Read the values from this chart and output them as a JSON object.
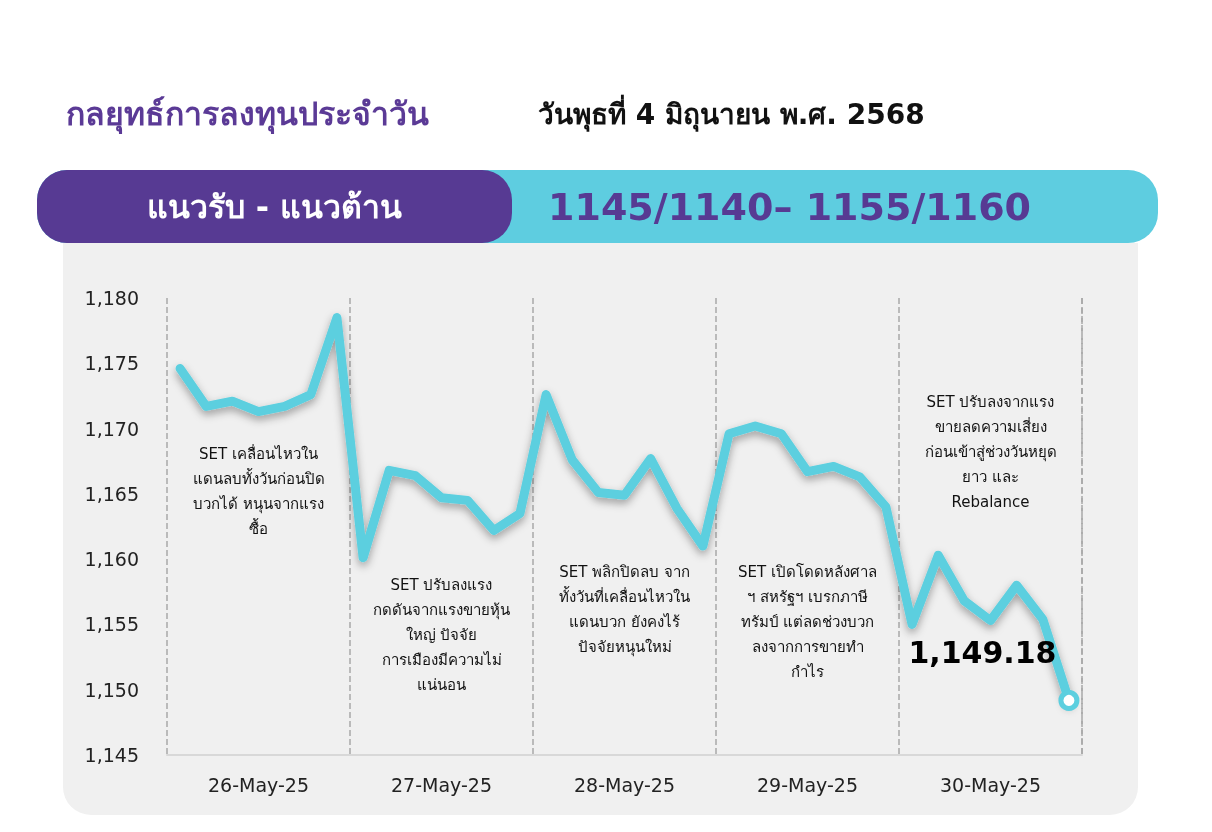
{
  "chart_data": {
    "type": "line",
    "title": "กลยุทธ์การลงทุนประจำวัน",
    "subtitle": "วันพุธที่ 4 มิถุนายน พ.ศ. 2568",
    "annotations": [
      "แนวรับ - แนวต้าน",
      "1145/1140– 1155/1160",
      "SET เคลื่อนไหวใน\nแดนลบทั้งวันก่อนปิด\nบวกได้ หนุนจากแรง\nซื้อ",
      "SET ปรับลงแรง\nกดดันจากแรงขายหุ้น\nใหญ่ ปัจจัย\nการเมืองมีความไม่\nแน่นอน",
      "SET พลิกปิดลบ จาก\nทั้งวันที่เคลื่อนไหวใน\nแดนบวก ยังคงไร้\nปัจจัยหนุนใหม่",
      "SET เปิดโดดหลังศาล\nฯ สหรัฐฯ เบรกภาษี\nทรัมป์ แต่ลดช่วงบวก\nลงจากการขายทำ\nกำไร",
      "SET ปรับลงจากแรง\nขายลดความเสี่ยง\nก่อนเข้าสู่ช่วงวันหยุด\nยาว และ\nRebalance"
    ],
    "categories": [
      null,
      null,
      null,
      "26-May-25",
      null,
      null,
      null,
      null,
      null,
      null,
      "27-May-25",
      null,
      null,
      null,
      null,
      null,
      null,
      "28-May-25",
      null,
      null,
      null,
      null,
      null,
      null,
      "29-May-25",
      null,
      null,
      null,
      null,
      null,
      null,
      "30-May-25",
      null,
      null,
      null
    ],
    "series": [
      {
        "color": "#5ccfdf",
        "values": [
          1174.6,
          1171.7,
          1172.1,
          1171.3,
          1171.7,
          1172.6,
          1178.5,
          1160.1,
          1166.8,
          1166.4,
          1164.7,
          1164.5,
          1162.2,
          1163.5,
          1172.6,
          1167.6,
          1165.1,
          1164.9,
          1167.7,
          1163.9,
          1161.0,
          1169.6,
          1170.2,
          1169.6,
          1166.7,
          1167.1,
          1166.3,
          1164.0,
          1155.0,
          1160.3,
          1156.8,
          1155.3,
          1158.0,
          1155.4,
          1149.18
        ],
        "value_labels": [
          null,
          null,
          null,
          null,
          null,
          null,
          null,
          null,
          null,
          null,
          null,
          null,
          null,
          null,
          null,
          null,
          null,
          null,
          null,
          null,
          null,
          null,
          null,
          null,
          null,
          null,
          null,
          null,
          null,
          null,
          null,
          null,
          null,
          null,
          "1,149.18"
        ]
      }
    ],
    "ylim": [
      1145,
      1180
    ],
    "yticks": [
      {
        "value": 1145,
        "label": "1,145"
      },
      {
        "value": 1150,
        "label": "1,150"
      },
      {
        "value": 1155,
        "label": "1,155"
      },
      {
        "value": 1160,
        "label": "1,160"
      },
      {
        "value": 1165,
        "label": "1,165"
      },
      {
        "value": 1170,
        "label": "1,170"
      },
      {
        "value": 1175,
        "label": "1,175"
      },
      {
        "value": 1180,
        "label": "1,180"
      }
    ],
    "line_style": "solid"
  }
}
